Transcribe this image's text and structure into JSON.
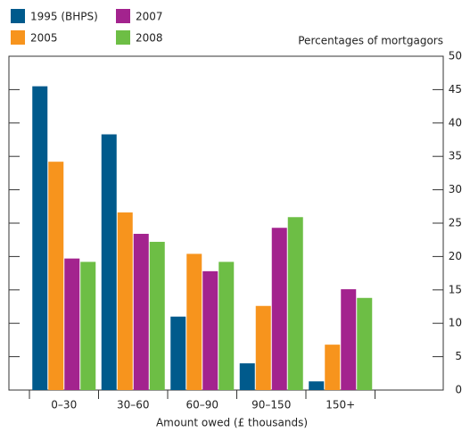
{
  "chart_data": {
    "type": "bar",
    "y_axis_label": "Percentages of mortgagors",
    "x_axis_label": "Amount owed (£ thousands)",
    "categories": [
      "0–30",
      "30–60",
      "60–90",
      "90–150",
      "150+"
    ],
    "series": [
      {
        "name": "1995 (BHPS)",
        "color": "#005a8c",
        "values": [
          45.5,
          38.3,
          11,
          4,
          1.3
        ]
      },
      {
        "name": "2005",
        "color": "#f7941d",
        "values": [
          34.2,
          26.6,
          20.4,
          12.6,
          6.8
        ]
      },
      {
        "name": "2007",
        "color": "#a3238e",
        "values": [
          19.7,
          23.4,
          17.8,
          24.3,
          15.1
        ]
      },
      {
        "name": "2008",
        "color": "#6dbe45",
        "values": [
          19.2,
          22.2,
          19.2,
          25.9,
          13.8
        ]
      }
    ],
    "ylim": [
      0,
      50
    ],
    "yticks": [
      0,
      5,
      10,
      15,
      20,
      25,
      30,
      35,
      40,
      45,
      50
    ]
  }
}
